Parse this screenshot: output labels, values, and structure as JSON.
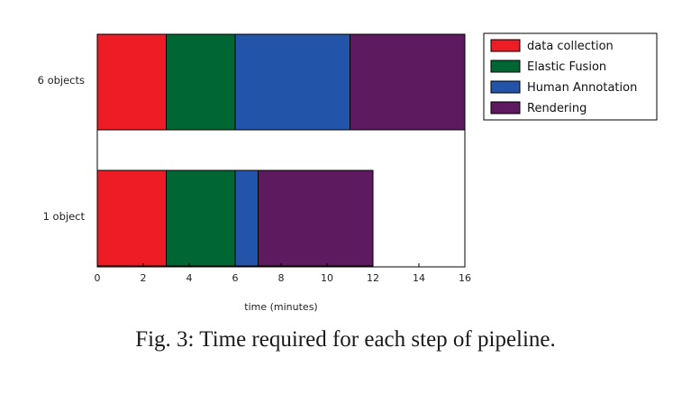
{
  "chart_data": {
    "type": "bar",
    "orientation": "horizontal",
    "stacked": true,
    "categories": [
      "6 objects",
      "1 object"
    ],
    "series": [
      {
        "name": "data collection",
        "values": [
          3,
          3
        ],
        "color": "#ee1c25"
      },
      {
        "name": "Elastic Fusion",
        "values": [
          3,
          3
        ],
        "color": "#006633"
      },
      {
        "name": "Human Annotation",
        "values": [
          5,
          1
        ],
        "color": "#2255aa"
      },
      {
        "name": "Rendering",
        "values": [
          5,
          5
        ],
        "color": "#5e1a5e"
      }
    ],
    "xlabel": "time (minutes)",
    "xlim": [
      0,
      16
    ],
    "xticks": [
      0,
      2,
      4,
      6,
      8,
      10,
      12,
      14,
      16
    ],
    "grid": false,
    "legend_position": "top-right-outside"
  },
  "caption": "Fig. 3: Time required for each step of pipeline."
}
